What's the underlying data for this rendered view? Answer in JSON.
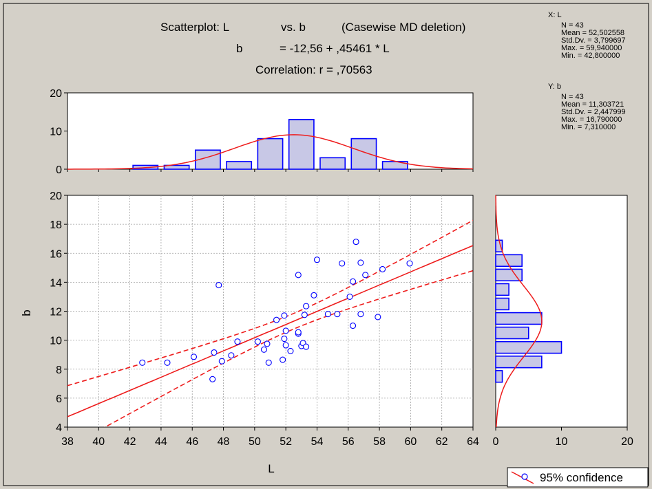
{
  "title": {
    "line1_left": "Scatterplot: L",
    "line1_mid": "vs. b",
    "line1_right": "(Casewise MD deletion)",
    "line2_left": "b",
    "line2_right": "= -12,56 + ,45461 * L",
    "line3": "Correlation: r = ,70563"
  },
  "stats": {
    "x": {
      "header": "X:  L",
      "lines": [
        "N = 43",
        "Mean = 52,502558",
        "Std.Dv. = 3,799697",
        "Max. = 59,940000",
        "Min. = 42,800000"
      ]
    },
    "y": {
      "header": "Y:  b",
      "lines": [
        "N = 43",
        "Mean = 11,303721",
        "Std.Dv. = 2,447999",
        "Max. = 16,790000",
        "Min. = 7,310000"
      ]
    }
  },
  "legend": {
    "label": "95% confidence"
  },
  "colors": {
    "background": "#d4d0c8",
    "plot_bg": "#ffffff",
    "points": "#0000ff",
    "fit_line": "#ee1c1c",
    "bar_fill": "#c8c8e6",
    "bar_stroke": "#0000ff",
    "grid": "#a0a0a0"
  },
  "chart_data": [
    {
      "type": "scatter",
      "xlabel": "L",
      "ylabel": "b",
      "xlim": [
        38,
        64
      ],
      "ylim": [
        4,
        20
      ],
      "xticks": [
        "38",
        "40",
        "42",
        "44",
        "46",
        "48",
        "50",
        "52",
        "54",
        "56",
        "58",
        "60",
        "62",
        "64"
      ],
      "yticks": [
        "4",
        "6",
        "8",
        "10",
        "12",
        "14",
        "16",
        "18",
        "20"
      ],
      "grid": true,
      "regression": {
        "intercept": -12.56,
        "slope": 0.45461
      },
      "points": [
        [
          42.8,
          8.45
        ],
        [
          44.4,
          8.45
        ],
        [
          46.1,
          8.85
        ],
        [
          47.4,
          9.15
        ],
        [
          47.3,
          7.31
        ],
        [
          47.7,
          13.8
        ],
        [
          47.9,
          8.55
        ],
        [
          48.5,
          8.95
        ],
        [
          48.9,
          9.9
        ],
        [
          50.2,
          9.9
        ],
        [
          50.6,
          9.35
        ],
        [
          50.8,
          9.75
        ],
        [
          50.9,
          8.45
        ],
        [
          51.4,
          11.4
        ],
        [
          51.8,
          8.65
        ],
        [
          51.9,
          11.7
        ],
        [
          51.9,
          10.1
        ],
        [
          52.0,
          10.65
        ],
        [
          52.0,
          9.65
        ],
        [
          52.3,
          9.25
        ],
        [
          52.8,
          10.45
        ],
        [
          52.8,
          10.55
        ],
        [
          52.8,
          14.5
        ],
        [
          53.0,
          9.6
        ],
        [
          53.1,
          9.8
        ],
        [
          53.2,
          11.75
        ],
        [
          53.3,
          12.35
        ],
        [
          53.3,
          9.55
        ],
        [
          53.8,
          13.1
        ],
        [
          54.0,
          15.55
        ],
        [
          54.7,
          11.8
        ],
        [
          55.3,
          11.8
        ],
        [
          55.6,
          15.3
        ],
        [
          56.1,
          13.0
        ],
        [
          56.3,
          11.0
        ],
        [
          56.3,
          14.05
        ],
        [
          56.5,
          16.79
        ],
        [
          56.8,
          11.8
        ],
        [
          56.8,
          15.35
        ],
        [
          57.1,
          14.5
        ],
        [
          57.9,
          11.6
        ],
        [
          58.2,
          14.9
        ],
        [
          59.94,
          15.3
        ]
      ]
    },
    {
      "type": "bar",
      "orientation": "vertical",
      "variable": "L",
      "bin_edges": [
        42,
        44,
        46,
        48,
        50,
        52,
        54,
        56,
        58,
        60
      ],
      "values": [
        1,
        1,
        5,
        2,
        8,
        13,
        3,
        8,
        2
      ],
      "ylim": [
        0,
        20
      ],
      "yticks": [
        "0",
        "10",
        "20"
      ],
      "normal_curve": {
        "mean": 52.502558,
        "sd": 3.799697,
        "n": 43,
        "bin_width": 2
      }
    },
    {
      "type": "bar",
      "orientation": "horizontal",
      "variable": "b",
      "bin_edges": [
        7,
        8,
        9,
        10,
        11,
        12,
        13,
        14,
        15,
        16,
        17
      ],
      "values": [
        1,
        7,
        10,
        5,
        7,
        2,
        2,
        4,
        4,
        1
      ],
      "xlim": [
        0,
        20
      ],
      "xticks": [
        "0",
        "10",
        "20"
      ],
      "normal_curve": {
        "mean": 11.303721,
        "sd": 2.447999,
        "n": 43,
        "bin_width": 1
      }
    }
  ]
}
